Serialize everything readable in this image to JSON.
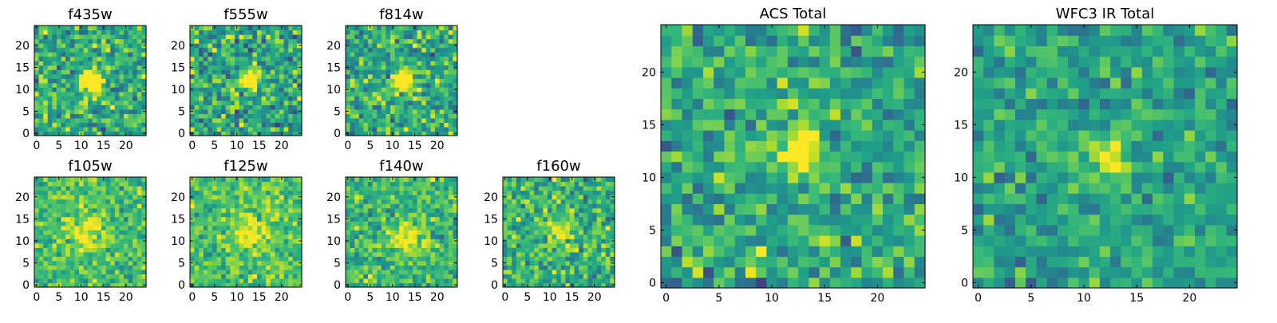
{
  "colors": {
    "colormap": "viridis",
    "low": "#440154",
    "high": "#fde725"
  },
  "chart_data": [
    {
      "type": "heatmap",
      "title": "f435w",
      "grid_size": 25,
      "x_ticks": [
        "0",
        "5",
        "10",
        "15",
        "20"
      ],
      "y_ticks": [
        "0",
        "5",
        "10",
        "15",
        "20"
      ],
      "xlim": [
        0,
        24
      ],
      "ylim": [
        0,
        24
      ],
      "peak": [
        12.5,
        12
      ],
      "peak_sigma": 1.6,
      "peak_amp": 1.0,
      "background": 0.62,
      "noise": 0.22,
      "seed": 11
    },
    {
      "type": "heatmap",
      "title": "f555w",
      "grid_size": 25,
      "x_ticks": [
        "0",
        "5",
        "10",
        "15",
        "20"
      ],
      "y_ticks": [
        "0",
        "5",
        "10",
        "15",
        "20"
      ],
      "xlim": [
        0,
        24
      ],
      "ylim": [
        0,
        24
      ],
      "peak": [
        13,
        12
      ],
      "peak_sigma": 1.5,
      "peak_amp": 0.8,
      "background": 0.6,
      "noise": 0.24,
      "seed": 23
    },
    {
      "type": "heatmap",
      "title": "f814w",
      "grid_size": 25,
      "x_ticks": [
        "0",
        "5",
        "10",
        "15",
        "20"
      ],
      "y_ticks": [
        "0",
        "5",
        "10",
        "15",
        "20"
      ],
      "xlim": [
        0,
        24
      ],
      "ylim": [
        0,
        24
      ],
      "peak": [
        12.5,
        12
      ],
      "peak_sigma": 1.6,
      "peak_amp": 0.8,
      "background": 0.62,
      "noise": 0.22,
      "seed": 37
    },
    {
      "type": "heatmap",
      "title": "f105w",
      "grid_size": 25,
      "x_ticks": [
        "0",
        "5",
        "10",
        "15",
        "20"
      ],
      "y_ticks": [
        "0",
        "5",
        "10",
        "15",
        "20"
      ],
      "xlim": [
        0,
        24
      ],
      "ylim": [
        0,
        24
      ],
      "peak": [
        11,
        12
      ],
      "peak_sigma": 2.5,
      "peak_amp": 0.35,
      "background": 0.7,
      "noise": 0.16,
      "seed": 41
    },
    {
      "type": "heatmap",
      "title": "f125w",
      "grid_size": 25,
      "x_ticks": [
        "0",
        "5",
        "10",
        "15",
        "20"
      ],
      "y_ticks": [
        "0",
        "5",
        "10",
        "15",
        "20"
      ],
      "xlim": [
        0,
        24
      ],
      "ylim": [
        0,
        24
      ],
      "peak": [
        13,
        12
      ],
      "peak_sigma": 2.2,
      "peak_amp": 0.4,
      "background": 0.72,
      "noise": 0.16,
      "seed": 53
    },
    {
      "type": "heatmap",
      "title": "f140w",
      "grid_size": 25,
      "x_ticks": [
        "0",
        "5",
        "10",
        "15",
        "20"
      ],
      "y_ticks": [
        "0",
        "5",
        "10",
        "15",
        "20"
      ],
      "xlim": [
        0,
        24
      ],
      "ylim": [
        0,
        24
      ],
      "peak": [
        13,
        11
      ],
      "peak_sigma": 2.3,
      "peak_amp": 0.4,
      "background": 0.68,
      "noise": 0.17,
      "seed": 67
    },
    {
      "type": "heatmap",
      "title": "f160w",
      "grid_size": 25,
      "x_ticks": [
        "0",
        "5",
        "10",
        "15",
        "20"
      ],
      "y_ticks": [
        "0",
        "5",
        "10",
        "15",
        "20"
      ],
      "xlim": [
        0,
        24
      ],
      "ylim": [
        0,
        24
      ],
      "peak": [
        12,
        12
      ],
      "peak_sigma": 2.0,
      "peak_amp": 0.3,
      "background": 0.65,
      "noise": 0.2,
      "seed": 79
    },
    {
      "type": "heatmap",
      "title": "ACS Total",
      "grid_size": 25,
      "x_ticks": [
        "0",
        "5",
        "10",
        "15",
        "20"
      ],
      "y_ticks": [
        "0",
        "5",
        "10",
        "15",
        "20"
      ],
      "xlim": [
        0,
        24
      ],
      "ylim": [
        0,
        24
      ],
      "peak": [
        12.5,
        12.5
      ],
      "peak_sigma": 1.3,
      "peak_amp": 0.75,
      "background": 0.6,
      "noise": 0.2,
      "seed": 97
    },
    {
      "type": "heatmap",
      "title": "WFC3 IR Total",
      "grid_size": 25,
      "x_ticks": [
        "0",
        "5",
        "10",
        "15",
        "20"
      ],
      "y_ticks": [
        "0",
        "5",
        "10",
        "15",
        "20"
      ],
      "xlim": [
        0,
        24
      ],
      "ylim": [
        0,
        24
      ],
      "peak": [
        12.5,
        12
      ],
      "peak_sigma": 1.4,
      "peak_amp": 0.5,
      "background": 0.58,
      "noise": 0.16,
      "seed": 113
    }
  ]
}
